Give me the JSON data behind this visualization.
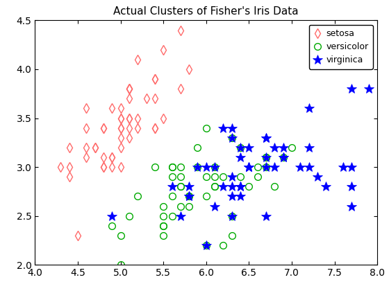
{
  "title": "Actual Clusters of Fisher's Iris Data",
  "setosa_x": [
    5.1,
    4.9,
    4.7,
    4.6,
    5.0,
    5.4,
    4.6,
    5.0,
    4.4,
    4.9,
    5.4,
    4.8,
    4.8,
    4.3,
    5.8,
    5.7,
    5.4,
    5.1,
    5.7,
    5.1,
    5.4,
    5.1,
    4.6,
    5.1,
    4.8,
    5.0,
    5.0,
    5.2,
    5.2,
    4.7,
    4.8,
    5.4,
    5.2,
    5.5,
    4.9,
    5.0,
    5.5,
    4.9,
    4.4,
    5.1,
    5.0,
    4.5,
    4.4,
    5.0,
    5.1,
    4.8,
    5.1,
    4.6,
    5.3,
    5.0
  ],
  "setosa_y": [
    3.5,
    3.0,
    3.2,
    3.1,
    3.6,
    3.9,
    3.4,
    3.4,
    2.9,
    3.1,
    3.7,
    3.4,
    3.0,
    3.0,
    4.0,
    4.4,
    3.9,
    3.5,
    3.8,
    3.8,
    3.4,
    3.7,
    3.6,
    3.3,
    3.4,
    3.0,
    3.4,
    3.5,
    3.4,
    3.2,
    3.1,
    3.4,
    4.1,
    4.2,
    3.1,
    3.2,
    3.5,
    3.6,
    3.0,
    3.4,
    3.5,
    2.3,
    3.2,
    3.5,
    3.8,
    3.0,
    3.8,
    3.2,
    3.7,
    3.3
  ],
  "versicolor_x": [
    7.0,
    6.4,
    6.9,
    5.5,
    6.5,
    5.7,
    6.3,
    4.9,
    6.6,
    5.2,
    5.0,
    5.9,
    6.0,
    6.1,
    5.6,
    6.7,
    5.6,
    5.8,
    6.2,
    5.6,
    5.9,
    6.1,
    6.3,
    6.1,
    6.4,
    6.6,
    6.8,
    6.7,
    6.0,
    5.7,
    5.5,
    5.5,
    5.8,
    6.0,
    5.4,
    6.0,
    6.7,
    6.3,
    5.6,
    5.5,
    5.5,
    6.1,
    5.8,
    5.0,
    5.6,
    5.7,
    5.7,
    6.2,
    5.1,
    5.7
  ],
  "versicolor_y": [
    3.2,
    3.2,
    3.1,
    2.3,
    2.8,
    2.8,
    3.3,
    2.4,
    2.9,
    2.7,
    2.0,
    3.0,
    2.2,
    2.9,
    2.9,
    3.1,
    3.0,
    2.7,
    2.2,
    2.5,
    3.2,
    2.8,
    2.5,
    2.8,
    2.9,
    3.0,
    2.8,
    3.0,
    2.9,
    2.6,
    2.4,
    2.4,
    2.7,
    2.7,
    3.0,
    3.4,
    3.1,
    2.3,
    3.0,
    2.5,
    2.6,
    3.0,
    2.6,
    2.3,
    2.7,
    3.0,
    2.9,
    2.9,
    2.5,
    2.8
  ],
  "virginica_x": [
    6.3,
    5.8,
    7.1,
    6.3,
    6.5,
    7.6,
    4.9,
    7.3,
    6.7,
    7.2,
    6.5,
    6.4,
    6.8,
    5.7,
    5.8,
    6.4,
    6.5,
    7.7,
    7.7,
    6.0,
    6.9,
    5.6,
    7.7,
    6.3,
    6.7,
    7.2,
    6.2,
    6.1,
    6.4,
    7.2,
    7.4,
    7.9,
    6.4,
    6.3,
    6.1,
    7.7,
    6.3,
    6.4,
    6.0,
    6.9,
    6.7,
    6.9,
    5.8,
    6.8,
    6.7,
    6.7,
    6.3,
    6.5,
    6.2,
    5.9
  ],
  "virginica_y": [
    3.3,
    2.7,
    3.0,
    2.9,
    3.0,
    3.0,
    2.5,
    2.9,
    2.5,
    3.6,
    3.2,
    2.7,
    3.0,
    2.5,
    2.8,
    3.2,
    3.0,
    3.8,
    2.6,
    2.2,
    3.2,
    2.8,
    2.8,
    2.7,
    3.3,
    3.2,
    2.8,
    3.0,
    2.8,
    3.0,
    2.8,
    3.8,
    2.8,
    2.8,
    2.6,
    3.0,
    3.4,
    3.1,
    3.0,
    3.1,
    3.1,
    3.1,
    2.7,
    3.2,
    3.3,
    3.0,
    2.5,
    3.0,
    3.4,
    3.0
  ],
  "setosa_color": "#FF6B6B",
  "versicolor_color": "#00AA00",
  "virginica_color": "#0000FF",
  "xlim": [
    4,
    8
  ],
  "ylim": [
    2,
    4.5
  ],
  "xticks": [
    4,
    4.5,
    5,
    5.5,
    6,
    6.5,
    7,
    7.5,
    8
  ],
  "yticks": [
    2.0,
    2.5,
    3.0,
    3.5,
    4.0,
    4.5
  ],
  "title_fontsize": 11,
  "legend_fontsize": 9,
  "tick_fontsize": 10
}
